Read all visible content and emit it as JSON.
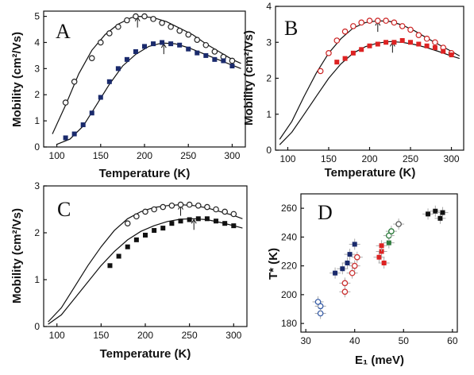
{
  "chart_data": [
    {
      "type": "scatter",
      "panel": "A",
      "xlabel": "Temperature (K)",
      "ylabel": "Mobility (cm²/Vs)",
      "xlim": [
        85,
        315
      ],
      "ylim": [
        0,
        5.2
      ],
      "xticks": [
        100,
        150,
        200,
        250,
        300
      ],
      "yticks": [
        0,
        1,
        2,
        3,
        4,
        5
      ],
      "series": [
        {
          "marker": "open-circle",
          "color": "#222222",
          "x": [
            110,
            120,
            140,
            150,
            160,
            170,
            180,
            190,
            200,
            210,
            220,
            230,
            240,
            250,
            260,
            270,
            280,
            290,
            300
          ],
          "y": [
            1.7,
            2.5,
            3.4,
            4.0,
            4.35,
            4.6,
            4.85,
            5.0,
            5.0,
            4.9,
            4.75,
            4.6,
            4.45,
            4.3,
            4.1,
            3.9,
            3.65,
            3.45,
            3.3
          ],
          "fit": [
            [
              95,
              0.5
            ],
            [
              110,
              1.6
            ],
            [
              125,
              2.8
            ],
            [
              140,
              3.7
            ],
            [
              155,
              4.3
            ],
            [
              170,
              4.7
            ],
            [
              185,
              4.95
            ],
            [
              195,
              5.0
            ],
            [
              210,
              4.95
            ],
            [
              225,
              4.8
            ],
            [
              240,
              4.55
            ],
            [
              255,
              4.3
            ],
            [
              270,
              3.95
            ],
            [
              285,
              3.65
            ],
            [
              300,
              3.35
            ],
            [
              310,
              3.2
            ]
          ],
          "peak": 192
        },
        {
          "marker": "filled-square",
          "color": "#1a2a6c",
          "x": [
            110,
            120,
            130,
            140,
            150,
            160,
            170,
            180,
            190,
            200,
            210,
            220,
            230,
            240,
            250,
            260,
            270,
            280,
            290,
            300
          ],
          "y": [
            0.35,
            0.5,
            0.85,
            1.3,
            1.9,
            2.5,
            3.0,
            3.35,
            3.65,
            3.85,
            3.95,
            4.0,
            3.95,
            3.9,
            3.75,
            3.6,
            3.5,
            3.35,
            3.3,
            3.1
          ],
          "fit": [
            [
              100,
              0.1
            ],
            [
              115,
              0.3
            ],
            [
              130,
              0.8
            ],
            [
              145,
              1.6
            ],
            [
              160,
              2.4
            ],
            [
              175,
              3.1
            ],
            [
              190,
              3.55
            ],
            [
              205,
              3.85
            ],
            [
              220,
              3.98
            ],
            [
              235,
              3.95
            ],
            [
              250,
              3.8
            ],
            [
              265,
              3.6
            ],
            [
              280,
              3.4
            ],
            [
              295,
              3.2
            ],
            [
              310,
              3.0
            ]
          ],
          "peak": 222
        }
      ]
    },
    {
      "type": "scatter",
      "panel": "B",
      "xlabel": "Temperature (K)",
      "ylabel": "Mobility (cm²/Vs)",
      "xlim": [
        85,
        315
      ],
      "ylim": [
        0,
        4
      ],
      "xticks": [
        100,
        150,
        200,
        250,
        300
      ],
      "yticks": [
        0,
        1,
        2,
        3,
        4
      ],
      "series": [
        {
          "marker": "open-circle",
          "color": "#cc2222",
          "x": [
            140,
            150,
            160,
            170,
            180,
            190,
            200,
            210,
            220,
            230,
            240,
            250,
            260,
            270,
            280,
            290,
            300
          ],
          "y": [
            2.2,
            2.7,
            3.05,
            3.3,
            3.45,
            3.55,
            3.6,
            3.6,
            3.6,
            3.55,
            3.45,
            3.35,
            3.2,
            3.1,
            3.0,
            2.85,
            2.7
          ],
          "fit": [
            [
              90,
              0.3
            ],
            [
              105,
              0.8
            ],
            [
              120,
              1.5
            ],
            [
              135,
              2.15
            ],
            [
              150,
              2.7
            ],
            [
              165,
              3.1
            ],
            [
              180,
              3.4
            ],
            [
              195,
              3.55
            ],
            [
              210,
              3.6
            ],
            [
              225,
              3.58
            ],
            [
              240,
              3.48
            ],
            [
              255,
              3.32
            ],
            [
              270,
              3.12
            ],
            [
              285,
              2.93
            ],
            [
              300,
              2.75
            ],
            [
              310,
              2.62
            ]
          ],
          "peak": 210
        },
        {
          "marker": "filled-square",
          "color": "#dd2222",
          "x": [
            160,
            170,
            180,
            190,
            200,
            210,
            220,
            230,
            240,
            250,
            260,
            270,
            280,
            290,
            300
          ],
          "y": [
            2.45,
            2.55,
            2.7,
            2.8,
            2.9,
            2.95,
            3.0,
            3.0,
            3.05,
            3.0,
            2.95,
            2.9,
            2.85,
            2.75,
            2.65
          ],
          "fit": [
            [
              90,
              0.15
            ],
            [
              105,
              0.5
            ],
            [
              120,
              1.0
            ],
            [
              135,
              1.5
            ],
            [
              150,
              2.0
            ],
            [
              165,
              2.4
            ],
            [
              180,
              2.7
            ],
            [
              195,
              2.88
            ],
            [
              210,
              2.98
            ],
            [
              225,
              3.02
            ],
            [
              240,
              3.0
            ],
            [
              255,
              2.94
            ],
            [
              270,
              2.85
            ],
            [
              285,
              2.74
            ],
            [
              300,
              2.62
            ],
            [
              310,
              2.55
            ]
          ],
          "peak": 228
        }
      ]
    },
    {
      "type": "scatter",
      "panel": "C",
      "xlabel": "Temperature (K)",
      "ylabel": "Mobility (cm²/Vs)",
      "xlim": [
        85,
        315
      ],
      "ylim": [
        0,
        3
      ],
      "xticks": [
        100,
        150,
        200,
        250,
        300
      ],
      "yticks": [
        0,
        1,
        2,
        3
      ],
      "series": [
        {
          "marker": "open-circle",
          "color": "#222222",
          "x": [
            180,
            190,
            200,
            210,
            220,
            230,
            240,
            250,
            260,
            270,
            280,
            290,
            300
          ],
          "y": [
            2.2,
            2.35,
            2.45,
            2.5,
            2.55,
            2.58,
            2.6,
            2.6,
            2.58,
            2.55,
            2.5,
            2.45,
            2.4
          ],
          "fit": [
            [
              90,
              0.1
            ],
            [
              105,
              0.4
            ],
            [
              120,
              0.85
            ],
            [
              135,
              1.3
            ],
            [
              150,
              1.7
            ],
            [
              165,
              2.05
            ],
            [
              180,
              2.3
            ],
            [
              195,
              2.45
            ],
            [
              210,
              2.54
            ],
            [
              225,
              2.58
            ],
            [
              240,
              2.6
            ],
            [
              255,
              2.58
            ],
            [
              270,
              2.53
            ],
            [
              285,
              2.45
            ],
            [
              300,
              2.37
            ],
            [
              310,
              2.3
            ]
          ],
          "peak": 240
        },
        {
          "marker": "filled-square",
          "color": "#111111",
          "x": [
            160,
            170,
            180,
            190,
            200,
            210,
            220,
            230,
            240,
            250,
            260,
            270,
            280,
            290,
            300
          ],
          "y": [
            1.3,
            1.5,
            1.7,
            1.85,
            1.95,
            2.05,
            2.1,
            2.2,
            2.25,
            2.28,
            2.3,
            2.3,
            2.25,
            2.2,
            2.15
          ],
          "fit": [
            [
              90,
              0.05
            ],
            [
              105,
              0.25
            ],
            [
              120,
              0.6
            ],
            [
              135,
              0.95
            ],
            [
              150,
              1.3
            ],
            [
              165,
              1.6
            ],
            [
              180,
              1.85
            ],
            [
              195,
              2.03
            ],
            [
              210,
              2.15
            ],
            [
              225,
              2.24
            ],
            [
              240,
              2.29
            ],
            [
              255,
              2.3
            ],
            [
              270,
              2.28
            ],
            [
              285,
              2.22
            ],
            [
              300,
              2.15
            ],
            [
              310,
              2.1
            ]
          ],
          "peak": 255
        }
      ]
    },
    {
      "type": "scatter",
      "panel": "D",
      "xlabel": "E₁ (meV)",
      "ylabel": "T* (K)",
      "xlim": [
        29,
        61
      ],
      "ylim": [
        174,
        270
      ],
      "xticks": [
        30,
        40,
        50,
        60
      ],
      "yticks": [
        180,
        200,
        220,
        240,
        260
      ],
      "points": [
        {
          "x": 33,
          "y": 187,
          "c": "#3a5fa8",
          "m": "open"
        },
        {
          "x": 33,
          "y": 192,
          "c": "#3a5fa8",
          "m": "open"
        },
        {
          "x": 32.5,
          "y": 195,
          "c": "#3a5fa8",
          "m": "open"
        },
        {
          "x": 36,
          "y": 215,
          "c": "#1a2a6c",
          "m": "filled"
        },
        {
          "x": 37.5,
          "y": 218,
          "c": "#1a2a6c",
          "m": "filled"
        },
        {
          "x": 38.5,
          "y": 222,
          "c": "#1a2a6c",
          "m": "filled"
        },
        {
          "x": 39,
          "y": 228,
          "c": "#1a2a6c",
          "m": "filled"
        },
        {
          "x": 40,
          "y": 235,
          "c": "#1a2a6c",
          "m": "filled"
        },
        {
          "x": 38,
          "y": 202,
          "c": "#cc3333",
          "m": "open"
        },
        {
          "x": 38,
          "y": 208,
          "c": "#cc3333",
          "m": "open"
        },
        {
          "x": 39.5,
          "y": 215,
          "c": "#cc3333",
          "m": "open"
        },
        {
          "x": 40,
          "y": 220,
          "c": "#cc3333",
          "m": "open"
        },
        {
          "x": 40.5,
          "y": 226,
          "c": "#cc3333",
          "m": "open"
        },
        {
          "x": 45,
          "y": 226,
          "c": "#dd2222",
          "m": "filled"
        },
        {
          "x": 45.5,
          "y": 230,
          "c": "#dd2222",
          "m": "filled"
        },
        {
          "x": 45.5,
          "y": 234,
          "c": "#dd2222",
          "m": "filled"
        },
        {
          "x": 46,
          "y": 222,
          "c": "#dd2222",
          "m": "filled"
        },
        {
          "x": 47,
          "y": 236,
          "c": "#2a7a3a",
          "m": "filled"
        },
        {
          "x": 47,
          "y": 241,
          "c": "#2a7a3a",
          "m": "open"
        },
        {
          "x": 47.5,
          "y": 244,
          "c": "#2a7a3a",
          "m": "open"
        },
        {
          "x": 49,
          "y": 249,
          "c": "#555555",
          "m": "open"
        },
        {
          "x": 55,
          "y": 256,
          "c": "#111111",
          "m": "filled"
        },
        {
          "x": 56.5,
          "y": 258,
          "c": "#111111",
          "m": "filled"
        },
        {
          "x": 57.5,
          "y": 253,
          "c": "#111111",
          "m": "filled"
        },
        {
          "x": 58,
          "y": 257,
          "c": "#111111",
          "m": "filled"
        }
      ]
    }
  ]
}
